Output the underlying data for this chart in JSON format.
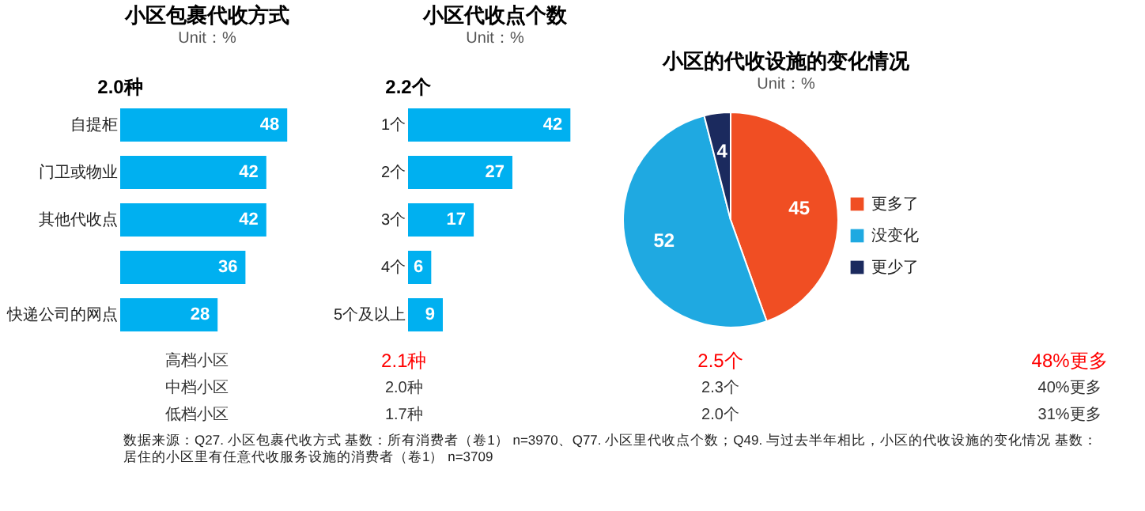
{
  "chart_data": [
    {
      "type": "bar",
      "orientation": "horizontal",
      "title": "小区包裹代收方式",
      "subtitle": "Unit：%",
      "annotations": [
        "2.0种"
      ],
      "categories": [
        "自提柜",
        "门卫或物业",
        "其他代收点",
        null,
        "快递公司的网点"
      ],
      "values": [
        48,
        42,
        42,
        36,
        28
      ],
      "color": "#00b0f0",
      "data_labels": true
    },
    {
      "type": "bar",
      "orientation": "horizontal",
      "title": "小区代收点个数",
      "subtitle": "Unit：%",
      "annotations": [
        "2.2个"
      ],
      "categories": [
        "1个",
        "2个",
        "3个",
        "4个",
        "5个及以上"
      ],
      "values": [
        42,
        27,
        17,
        6,
        9
      ],
      "color": "#00b0f0",
      "data_labels": true
    },
    {
      "type": "pie",
      "title": "小区的代收设施的变化情况",
      "subtitle": "Unit：%",
      "categories": [
        "更多了",
        "没变化",
        "更少了"
      ],
      "values": [
        45,
        52,
        4
      ],
      "colors": [
        "#f04e23",
        "#1fa9e1",
        "#1b2a5e"
      ],
      "data_labels": true,
      "legend": "right"
    },
    {
      "type": "other",
      "annotations": [
        "高档小区",
        "2.1种",
        "2.5个",
        "48%更多",
        "中档小区",
        "2.0种",
        "2.3个",
        "40%更多",
        "低档小区",
        "1.7种",
        "2.0个",
        "31%更多",
        "数据来源：Q27. 小区包裹代收方式 基数：所有消费者（卷1） n=3970、Q77. 小区里代收点个数；Q49. 与过去半年相比，小区的代收设施的变化情况 基数：居住的小区里有任意代收服务设施的消费者（卷1） n=3709"
      ]
    }
  ]
}
